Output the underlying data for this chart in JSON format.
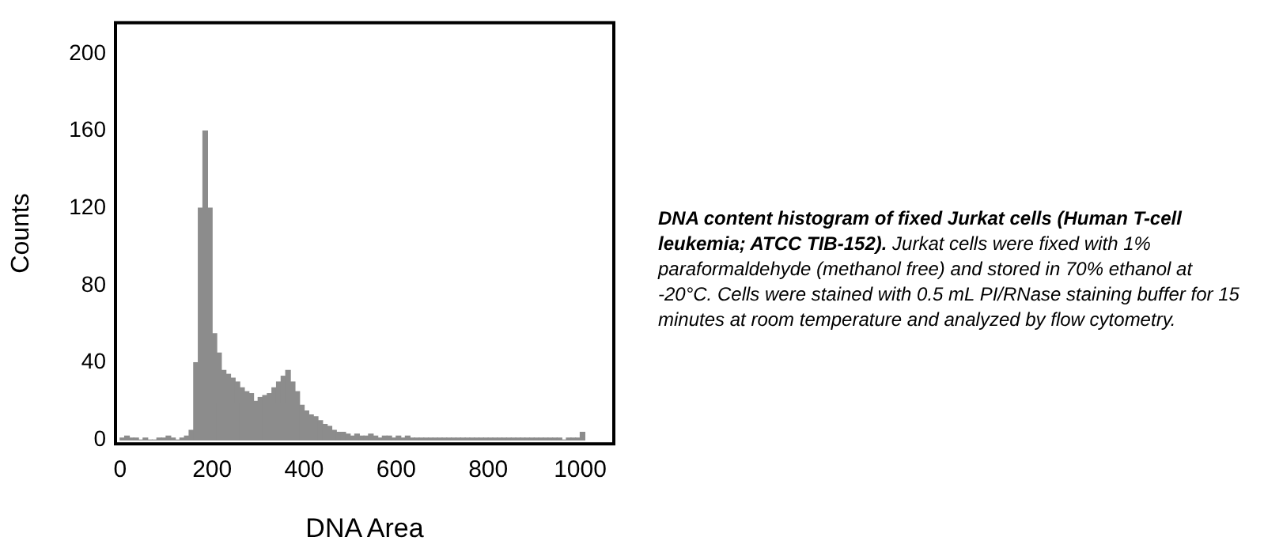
{
  "chart_data": {
    "type": "histogram",
    "title": "DNA content histogram of fixed Jurkat cells (Human T-cell leukemia; ATCC TIB-152).",
    "annotations": [
      "Jurkat cells were fixed with 1%  paraformaldehyde (methanol free) and stored in 70% ethanol at -20°C. Cells were stained with 0.5 mL PI/RNase staining buffer for 15 minutes at room temperature and analyzed by flow cytometry."
    ],
    "xlabel": "DNA Area",
    "ylabel": "Counts",
    "color": "#8c8c8c",
    "bins": [
      0,
      10,
      20,
      30,
      40,
      50,
      60,
      70,
      80,
      90,
      100,
      110,
      120,
      130,
      140,
      150,
      160,
      170,
      180,
      190,
      200,
      210,
      220,
      230,
      240,
      250,
      260,
      270,
      280,
      290,
      300,
      310,
      320,
      330,
      340,
      350,
      360,
      370,
      380,
      390,
      400,
      410,
      420,
      430,
      440,
      450,
      460,
      470,
      480,
      490,
      500,
      510,
      520,
      530,
      540,
      550,
      560,
      570,
      580,
      590,
      600,
      610,
      620,
      630,
      640,
      650,
      660,
      670,
      680,
      690,
      700,
      710,
      720,
      730,
      740,
      750,
      760,
      770,
      780,
      790,
      800,
      810,
      820,
      830,
      840,
      850,
      860,
      870,
      880,
      890,
      900,
      910,
      920,
      930,
      940,
      950,
      960,
      970,
      980,
      990,
      1000,
      1010
    ],
    "values": [
      1,
      2,
      1,
      1,
      0,
      1,
      0,
      0,
      1,
      1,
      2,
      1,
      0,
      1,
      2,
      5,
      40,
      120,
      160,
      120,
      55,
      45,
      36,
      34,
      32,
      30,
      27,
      25,
      24,
      20,
      22,
      23,
      24,
      27,
      30,
      33,
      36,
      30,
      25,
      18,
      15,
      13,
      12,
      10,
      8,
      7,
      5,
      4,
      4,
      3,
      2,
      3,
      2,
      2,
      3,
      2,
      1,
      2,
      2,
      1,
      2,
      1,
      2,
      1,
      1,
      1,
      1,
      1,
      1,
      1,
      1,
      1,
      1,
      1,
      1,
      1,
      1,
      1,
      1,
      1,
      1,
      1,
      1,
      1,
      1,
      1,
      1,
      1,
      1,
      1,
      1,
      1,
      1,
      1,
      1,
      1,
      0,
      1,
      1,
      1,
      4
    ],
    "xlim": [
      -10,
      1073
    ],
    "ylim": [
      -2,
      216
    ],
    "xticks": [
      0,
      200,
      400,
      600,
      800,
      1000
    ],
    "yticks": [
      0,
      40,
      80,
      120,
      160,
      200
    ],
    "grid": false,
    "legend": false
  }
}
